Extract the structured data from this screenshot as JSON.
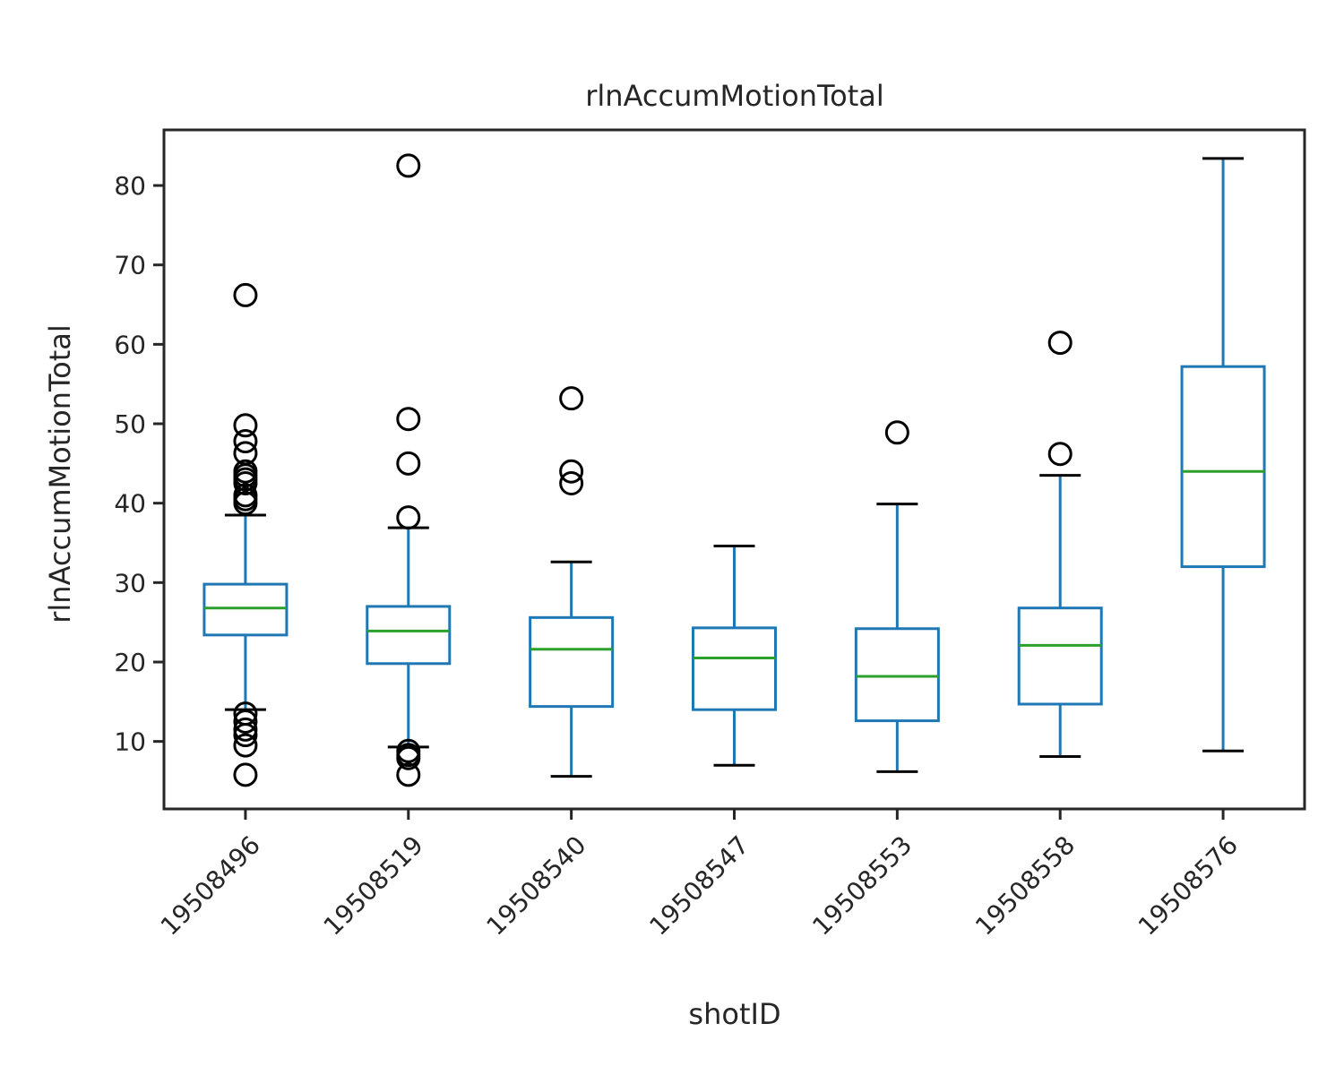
{
  "chart_data": {
    "type": "box",
    "title": "rlnAccumMotionTotal",
    "xlabel": "shotID",
    "ylabel": "rlnAccumMotionTotal",
    "ylim": [
      1.5,
      87.0
    ],
    "yticks": [
      10,
      20,
      30,
      40,
      50,
      60,
      70,
      80
    ],
    "grid": false,
    "colors": {
      "box": "#1f77b4",
      "median": "#2ca02c",
      "cap": "#000000",
      "flier": "#000000",
      "frame": "#262626"
    },
    "categories": [
      "19508496",
      "19508519",
      "19508540",
      "19508547",
      "19508553",
      "19508558",
      "19508576"
    ],
    "boxes": [
      {
        "label": "19508496",
        "whislo": 14.0,
        "q1": 23.4,
        "med": 26.8,
        "q3": 29.8,
        "whishi": 38.5,
        "fliers": [
          66.2,
          49.8,
          47.8,
          46.3,
          44.0,
          43.5,
          43.0,
          42.5,
          41.0,
          40.5,
          40.0,
          13.5,
          12.5,
          11.5,
          10.8,
          9.5,
          5.8
        ]
      },
      {
        "label": "19508519",
        "whislo": 9.3,
        "q1": 19.8,
        "med": 23.9,
        "q3": 27.0,
        "whishi": 36.9,
        "fliers": [
          82.5,
          50.6,
          45.0,
          38.2,
          8.8,
          8.3,
          7.9,
          5.8
        ]
      },
      {
        "label": "19508540",
        "whislo": 5.6,
        "q1": 14.4,
        "med": 21.6,
        "q3": 25.6,
        "whishi": 32.6,
        "fliers": [
          53.2,
          44.0,
          42.5
        ]
      },
      {
        "label": "19508547",
        "whislo": 7.0,
        "q1": 14.0,
        "med": 20.5,
        "q3": 24.3,
        "whishi": 34.6,
        "fliers": []
      },
      {
        "label": "19508553",
        "whislo": 6.2,
        "q1": 12.6,
        "med": 18.2,
        "q3": 24.2,
        "whishi": 39.9,
        "fliers": [
          48.9
        ]
      },
      {
        "label": "19508558",
        "whislo": 8.1,
        "q1": 14.7,
        "med": 22.1,
        "q3": 26.8,
        "whishi": 43.5,
        "fliers": [
          60.2,
          46.2
        ]
      },
      {
        "label": "19508576",
        "whislo": 8.8,
        "q1": 32.0,
        "med": 44.0,
        "q3": 57.2,
        "whishi": 83.4,
        "fliers": []
      }
    ]
  }
}
